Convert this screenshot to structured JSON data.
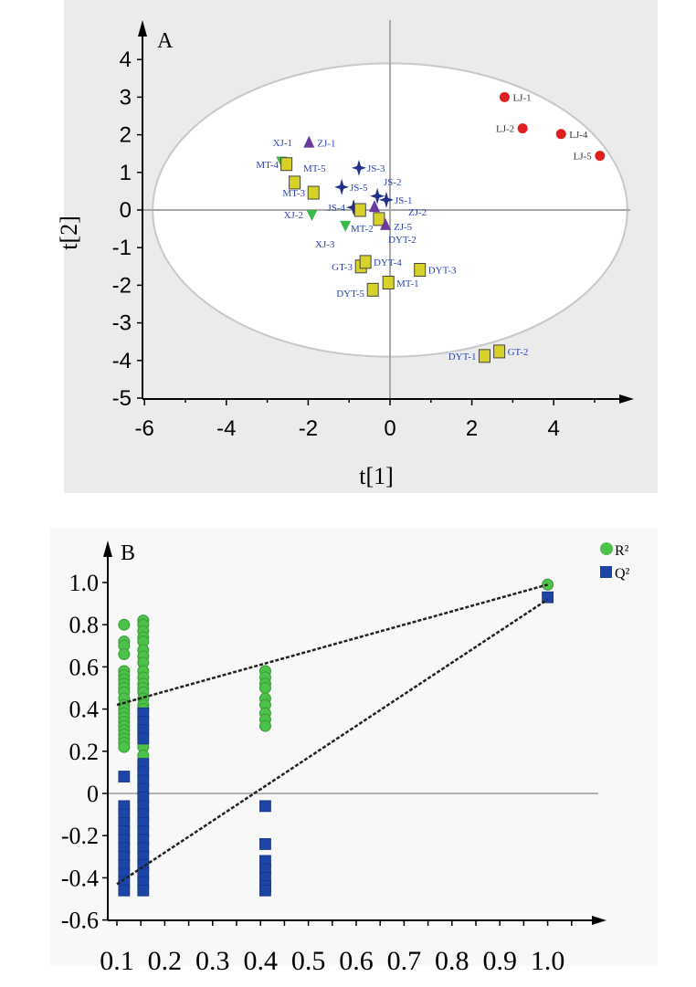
{
  "chart_data": [
    {
      "type": "scatter",
      "panel_label": "A",
      "xlabel": "t[1]",
      "ylabel": "t[2]",
      "xlim": [
        -6,
        5.8
      ],
      "ylim": [
        -5,
        4.6
      ],
      "xticks": [
        "-6",
        "-4",
        "-2",
        "0",
        "2",
        "4"
      ],
      "yticks": [
        "4",
        "3",
        "2",
        "1",
        "0",
        "-1",
        "-2",
        "-3",
        "-4",
        "-5"
      ],
      "ellipse": {
        "cx": 0,
        "cy": 0,
        "rx": 5.8,
        "ry": 3.9
      },
      "colors": {
        "LJ": "#e02020",
        "square": "#d6d22a",
        "ZJ": "#6a3aa0",
        "JS": "#1f2f8a",
        "XJ": "#3cb84a",
        "label": "#2d46b8"
      },
      "points": [
        {
          "label": "LJ-1",
          "x": 2.8,
          "y": 3.0,
          "shape": "circle",
          "group": "LJ"
        },
        {
          "label": "LJ-2",
          "x": 3.24,
          "y": 2.17,
          "shape": "circle",
          "group": "LJ"
        },
        {
          "label": "LJ-4",
          "x": 4.18,
          "y": 2.02,
          "shape": "circle",
          "group": "LJ"
        },
        {
          "label": "LJ-5",
          "x": 5.13,
          "y": 1.44,
          "shape": "circle",
          "group": "LJ"
        },
        {
          "label": "GT-2",
          "x": 2.67,
          "y": -3.76,
          "shape": "square",
          "group": "square"
        },
        {
          "label": "DYT-1",
          "x": 2.31,
          "y": -3.88,
          "shape": "square",
          "group": "square"
        },
        {
          "label": "ZJ-1",
          "x": -1.98,
          "y": 1.78,
          "shape": "triangle",
          "group": "ZJ"
        },
        {
          "label": "XJ-1",
          "x": -2.65,
          "y": 1.3,
          "shape": "down",
          "group": "XJ"
        },
        {
          "label": "MT-4",
          "x": -2.53,
          "y": 1.22,
          "shape": "square",
          "group": "square"
        },
        {
          "label": "MT-5",
          "x": -2.33,
          "y": 0.73,
          "shape": "square",
          "group": "square"
        },
        {
          "label": "MT-3",
          "x": -1.87,
          "y": 0.46,
          "shape": "square",
          "group": "square"
        },
        {
          "label": "JS-3",
          "x": -0.76,
          "y": 1.12,
          "shape": "star",
          "group": "JS"
        },
        {
          "label": "JS-5",
          "x": -1.18,
          "y": 0.61,
          "shape": "star",
          "group": "JS"
        },
        {
          "label": "JS-2",
          "x": -0.31,
          "y": 0.37,
          "shape": "star",
          "group": "JS"
        },
        {
          "label": "JS-1",
          "x": -0.09,
          "y": 0.27,
          "shape": "star",
          "group": "JS"
        },
        {
          "label": "JS-4",
          "x": -0.89,
          "y": 0.07,
          "shape": "star",
          "group": "JS"
        },
        {
          "label": "ZJ-2",
          "x": -0.38,
          "y": 0.07,
          "shape": "triangle",
          "group": "ZJ"
        },
        {
          "label": "MT-2",
          "x": -0.73,
          "y": 0.0,
          "shape": "square",
          "group": "square"
        },
        {
          "label": "XJ-2",
          "x": -1.91,
          "y": -0.12,
          "shape": "down",
          "group": "XJ"
        },
        {
          "label": "XJ-3",
          "x": -1.09,
          "y": -0.41,
          "shape": "down",
          "group": "XJ"
        },
        {
          "label": "DYT-2",
          "x": -0.27,
          "y": -0.24,
          "shape": "square",
          "group": "square"
        },
        {
          "label": "ZJ-5",
          "x": -0.11,
          "y": -0.41,
          "shape": "triangle",
          "group": "ZJ"
        },
        {
          "label": "GT-3",
          "x": -0.71,
          "y": -1.5,
          "shape": "square",
          "group": "square"
        },
        {
          "label": "DYT-4",
          "x": -0.6,
          "y": -1.38,
          "shape": "square",
          "group": "square"
        },
        {
          "label": "DYT-3",
          "x": 0.73,
          "y": -1.59,
          "shape": "square",
          "group": "square"
        },
        {
          "label": "MT-1",
          "x": -0.04,
          "y": -1.93,
          "shape": "square",
          "group": "square"
        },
        {
          "label": "DYT-5",
          "x": -0.42,
          "y": -2.12,
          "shape": "square",
          "group": "square"
        }
      ]
    },
    {
      "type": "scatter",
      "panel_label": "B",
      "xlim": [
        0.1,
        1.1
      ],
      "ylim": [
        -0.6,
        1.1
      ],
      "xticks": [
        "0.1",
        "0.2",
        "0.3",
        "0.4",
        "0.5",
        "0.6",
        "0.7",
        "0.8",
        "0.9",
        "1.0"
      ],
      "yticks": [
        "1.0",
        "0.8",
        "0.6",
        "0.4",
        "0.2",
        "0",
        "-0.2",
        "-0.4",
        "-0.6"
      ],
      "legend": {
        "position": "top-right",
        "items": [
          "R²",
          "Q²"
        ]
      },
      "series": [
        {
          "name": "R2",
          "color": "#4cc24a",
          "shape": "circle",
          "points": [
            [
              0.115,
              0.8
            ],
            [
              0.115,
              0.72
            ],
            [
              0.115,
              0.7
            ],
            [
              0.115,
              0.66
            ],
            [
              0.115,
              0.58
            ],
            [
              0.115,
              0.56
            ],
            [
              0.115,
              0.54
            ],
            [
              0.115,
              0.52
            ],
            [
              0.115,
              0.5
            ],
            [
              0.115,
              0.48
            ],
            [
              0.115,
              0.45
            ],
            [
              0.115,
              0.42
            ],
            [
              0.115,
              0.4
            ],
            [
              0.115,
              0.38
            ],
            [
              0.115,
              0.36
            ],
            [
              0.115,
              0.34
            ],
            [
              0.115,
              0.32
            ],
            [
              0.115,
              0.3
            ],
            [
              0.115,
              0.28
            ],
            [
              0.115,
              0.26
            ],
            [
              0.115,
              0.24
            ],
            [
              0.115,
              0.22
            ],
            [
              0.155,
              0.82
            ],
            [
              0.155,
              0.8
            ],
            [
              0.155,
              0.77
            ],
            [
              0.155,
              0.74
            ],
            [
              0.155,
              0.72
            ],
            [
              0.155,
              0.68
            ],
            [
              0.155,
              0.65
            ],
            [
              0.155,
              0.62
            ],
            [
              0.155,
              0.58
            ],
            [
              0.155,
              0.55
            ],
            [
              0.155,
              0.52
            ],
            [
              0.155,
              0.5
            ],
            [
              0.155,
              0.48
            ],
            [
              0.155,
              0.45
            ],
            [
              0.155,
              0.42
            ],
            [
              0.155,
              0.4
            ],
            [
              0.155,
              0.3
            ],
            [
              0.155,
              0.22
            ],
            [
              0.155,
              0.18
            ],
            [
              0.41,
              0.58
            ],
            [
              0.41,
              0.55
            ],
            [
              0.41,
              0.52
            ],
            [
              0.41,
              0.5
            ],
            [
              0.41,
              0.45
            ],
            [
              0.41,
              0.42
            ],
            [
              0.41,
              0.38
            ],
            [
              0.41,
              0.35
            ],
            [
              0.41,
              0.32
            ],
            [
              1.0,
              0.99
            ]
          ]
        },
        {
          "name": "Q2",
          "color": "#1f44a8",
          "shape": "square",
          "points": [
            [
              0.115,
              0.08
            ],
            [
              0.115,
              -0.06
            ],
            [
              0.115,
              -0.1
            ],
            [
              0.115,
              -0.14
            ],
            [
              0.115,
              -0.18
            ],
            [
              0.115,
              -0.22
            ],
            [
              0.115,
              -0.26
            ],
            [
              0.115,
              -0.3
            ],
            [
              0.115,
              -0.34
            ],
            [
              0.115,
              -0.38
            ],
            [
              0.115,
              -0.42
            ],
            [
              0.115,
              -0.46
            ],
            [
              0.155,
              0.38
            ],
            [
              0.155,
              0.34
            ],
            [
              0.155,
              0.3
            ],
            [
              0.155,
              0.26
            ],
            [
              0.155,
              0.14
            ],
            [
              0.155,
              0.1
            ],
            [
              0.155,
              0.06
            ],
            [
              0.155,
              0.02
            ],
            [
              0.155,
              -0.02
            ],
            [
              0.155,
              -0.06
            ],
            [
              0.155,
              -0.1
            ],
            [
              0.155,
              -0.14
            ],
            [
              0.155,
              -0.18
            ],
            [
              0.155,
              -0.22
            ],
            [
              0.155,
              -0.26
            ],
            [
              0.155,
              -0.3
            ],
            [
              0.155,
              -0.34
            ],
            [
              0.155,
              -0.38
            ],
            [
              0.155,
              -0.42
            ],
            [
              0.155,
              -0.46
            ],
            [
              0.41,
              -0.06
            ],
            [
              0.41,
              -0.24
            ],
            [
              0.41,
              -0.32
            ],
            [
              0.41,
              -0.36
            ],
            [
              0.41,
              -0.4
            ],
            [
              0.41,
              -0.44
            ],
            [
              0.41,
              -0.46
            ],
            [
              1.0,
              0.93
            ]
          ]
        }
      ],
      "regression_lines": [
        {
          "name": "R2",
          "from": [
            0.1,
            0.42
          ],
          "to": [
            1.0,
            0.99
          ]
        },
        {
          "name": "Q2",
          "from": [
            0.1,
            -0.43
          ],
          "to": [
            1.0,
            0.92
          ]
        }
      ]
    }
  ]
}
